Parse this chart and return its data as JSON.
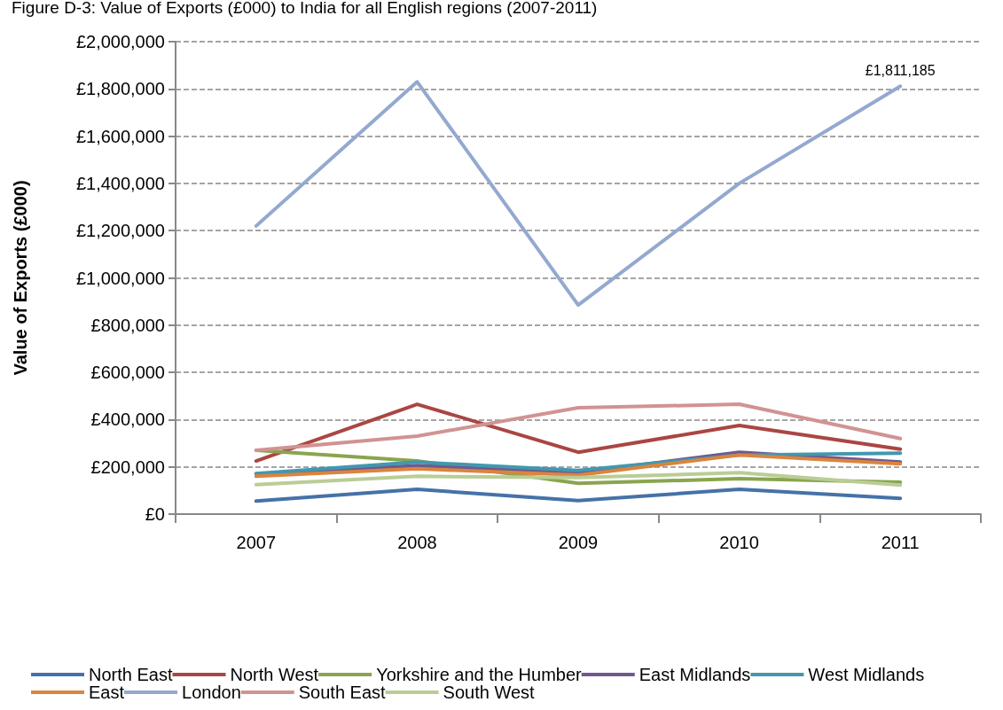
{
  "chart_data": {
    "type": "line",
    "title": "Figure D-3: Value of Exports (£000) to India for all English regions (2007-2011)",
    "ylabel": "Value of Exports (£000)",
    "categories": [
      "2007",
      "2008",
      "2009",
      "2010",
      "2011"
    ],
    "series": [
      {
        "name": "North East",
        "color": "#4572a7",
        "values": [
          55000,
          105000,
          57000,
          105000,
          67000
        ]
      },
      {
        "name": "North West",
        "color": "#aa4643",
        "values": [
          225000,
          465000,
          262000,
          375000,
          275000
        ]
      },
      {
        "name": "Yorkshire and the Humber",
        "color": "#89a54e",
        "values": [
          270000,
          225000,
          130000,
          150000,
          135000
        ]
      },
      {
        "name": "East Midlands",
        "color": "#71588f",
        "values": [
          170000,
          205000,
          175000,
          262000,
          220000
        ]
      },
      {
        "name": "West Midlands",
        "color": "#4198af",
        "values": [
          172000,
          220000,
          185000,
          250000,
          258000
        ]
      },
      {
        "name": "East",
        "color": "#db843d",
        "values": [
          160000,
          192000,
          165000,
          250000,
          213000
        ]
      },
      {
        "name": "London",
        "color": "#93a9cf",
        "values": [
          1220000,
          1830000,
          885000,
          1400000,
          1811185
        ]
      },
      {
        "name": "South East",
        "color": "#d19392",
        "values": [
          270000,
          330000,
          450000,
          465000,
          320000
        ]
      },
      {
        "name": "South West",
        "color": "#b9cd96",
        "values": [
          125000,
          160000,
          155000,
          175000,
          123000
        ]
      }
    ],
    "ylim": [
      0,
      2000000
    ],
    "yticks": [
      {
        "value": 0,
        "label": "£0"
      },
      {
        "value": 200000,
        "label": "£200,000"
      },
      {
        "value": 400000,
        "label": "£400,000"
      },
      {
        "value": 600000,
        "label": "£600,000"
      },
      {
        "value": 800000,
        "label": "£800,000"
      },
      {
        "value": 1000000,
        "label": "£1,000,000"
      },
      {
        "value": 1200000,
        "label": "£1,200,000"
      },
      {
        "value": 1400000,
        "label": "£1,400,000"
      },
      {
        "value": 1600000,
        "label": "£1,600,000"
      },
      {
        "value": 1800000,
        "label": "£1,800,000"
      },
      {
        "value": 2000000,
        "label": "£2,000,000"
      }
    ],
    "annotations": [
      {
        "text": "£1,811,185",
        "x": "2011",
        "y": 1811185
      }
    ],
    "grid": "y",
    "legend": "bottom",
    "marker": "none",
    "line_style": "solid"
  }
}
